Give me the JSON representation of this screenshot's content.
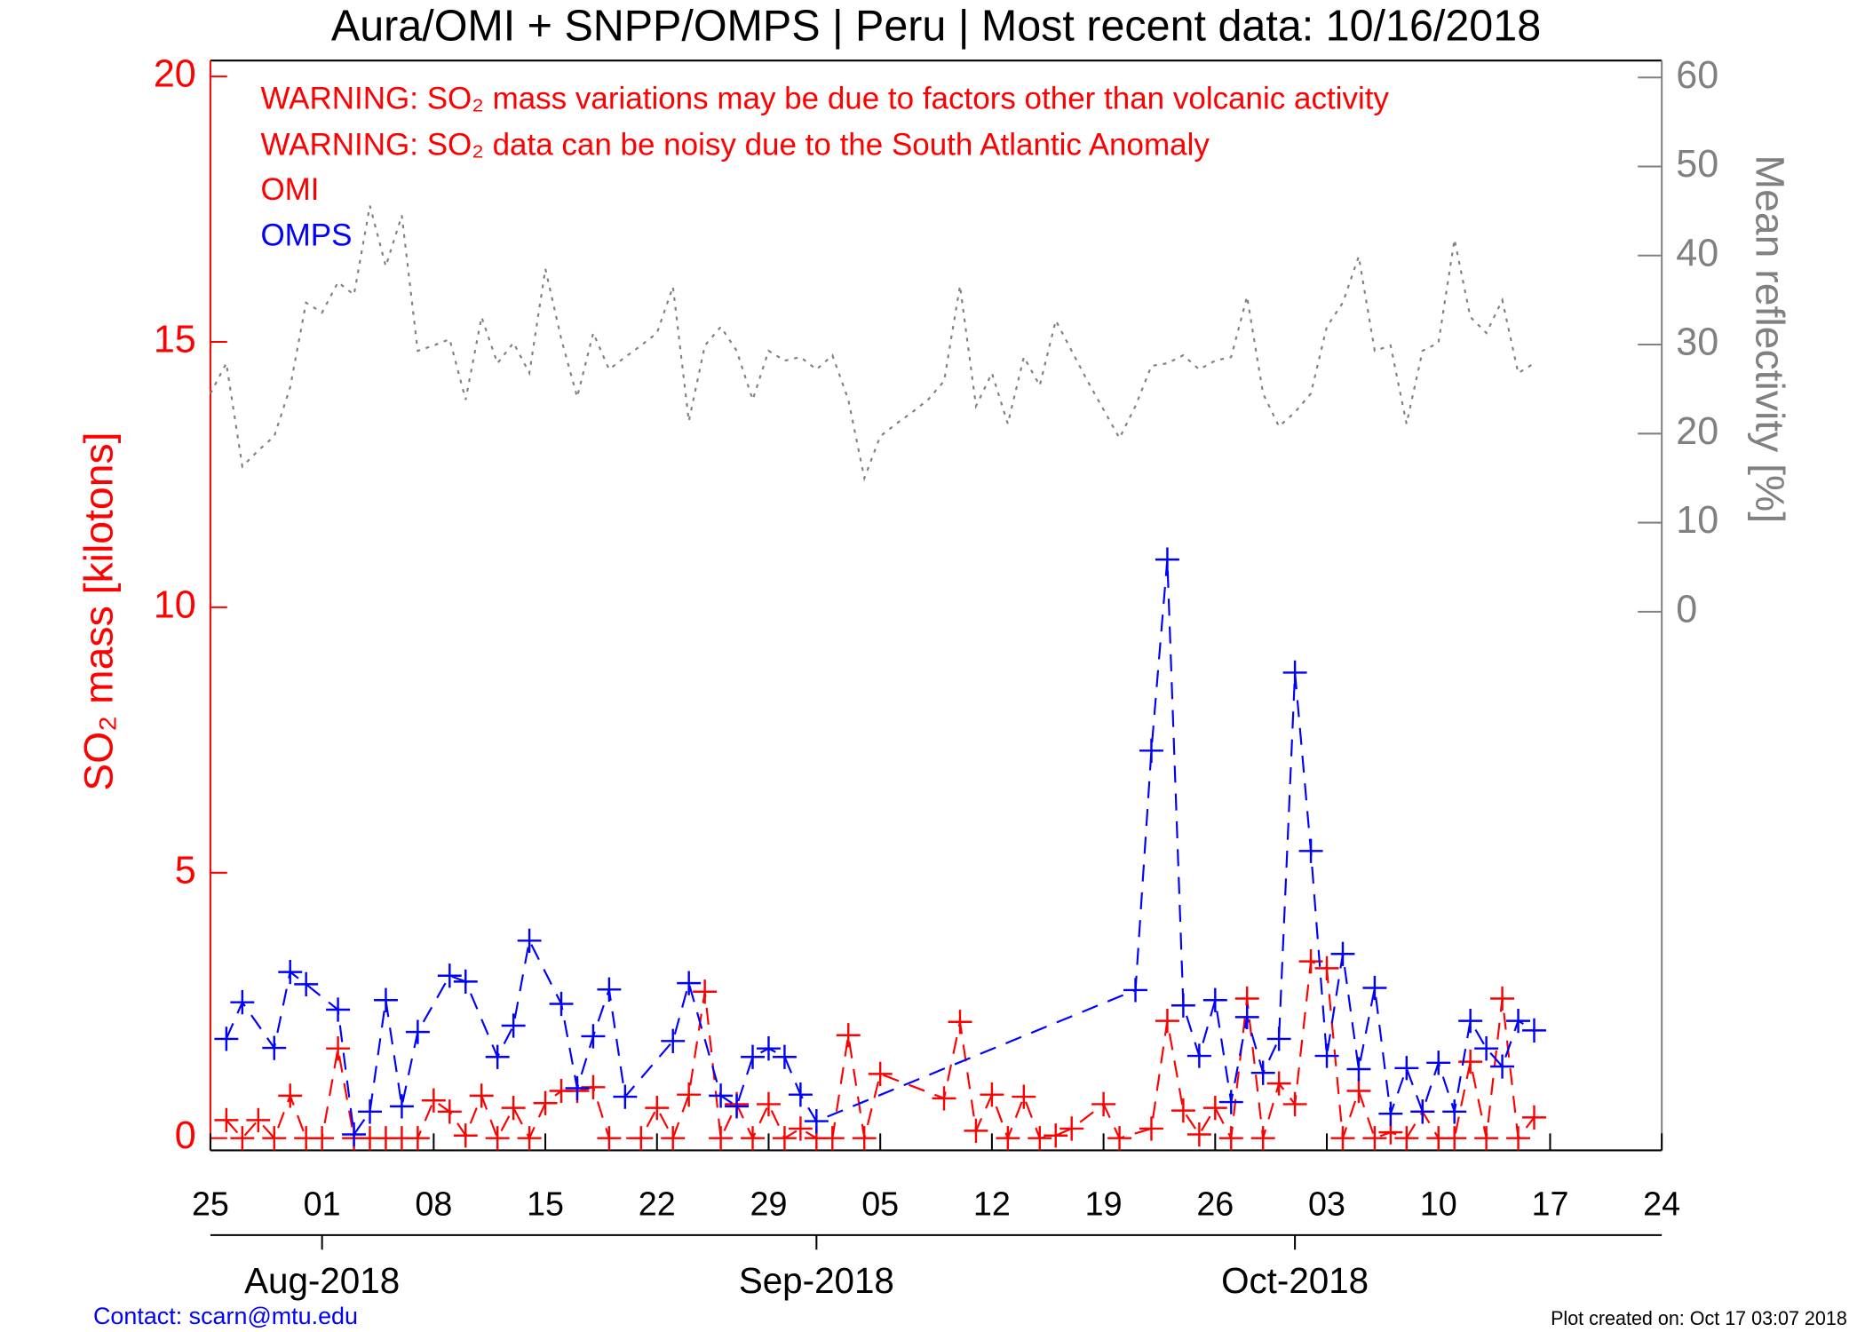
{
  "chart_data": {
    "type": "line",
    "title": "Aura/OMI + SNPP/OMPS | Peru | Most recent data: 10/16/2018",
    "annotations": [
      "WARNING: SO₂ mass variations may be due to factors other than volcanic activity",
      "WARNING: SO₂ data can be noisy due to the South Atlantic Anomaly"
    ],
    "contact": "Contact: scarn@mtu.edu",
    "created": "Plot created on: Oct 17 03:07 2018",
    "ylabel": "SO₂ mass [kilotons]",
    "y2label": "Mean reflectivity [%]",
    "ylim": [
      -0.23,
      20.3
    ],
    "yticks": [
      0,
      5,
      10,
      15,
      20
    ],
    "y2lim": [
      -60.5,
      61.9
    ],
    "y2ticks": [
      0,
      10,
      20,
      30,
      40,
      50,
      60
    ],
    "xlim": [
      "2018-07-25",
      "2018-10-24"
    ],
    "xticks": [
      {
        "value": "2018-07-25",
        "label": "25"
      },
      {
        "value": "2018-08-01",
        "label": "01"
      },
      {
        "value": "2018-08-08",
        "label": "08"
      },
      {
        "value": "2018-08-15",
        "label": "15"
      },
      {
        "value": "2018-08-22",
        "label": "22"
      },
      {
        "value": "2018-08-29",
        "label": "29"
      },
      {
        "value": "2018-09-05",
        "label": "05"
      },
      {
        "value": "2018-09-12",
        "label": "12"
      },
      {
        "value": "2018-09-19",
        "label": "19"
      },
      {
        "value": "2018-09-26",
        "label": "26"
      },
      {
        "value": "2018-10-03",
        "label": "03"
      },
      {
        "value": "2018-10-10",
        "label": "10"
      },
      {
        "value": "2018-10-17",
        "label": "17"
      },
      {
        "value": "2018-10-24",
        "label": "24"
      }
    ],
    "month_ticks": [
      {
        "value": "2018-08-01",
        "label": "Aug-2018"
      },
      {
        "value": "2018-09-01",
        "label": "Sep-2018"
      },
      {
        "value": "2018-10-01",
        "label": "Oct-2018"
      }
    ],
    "legend": "upper left",
    "series": [
      {
        "name": "OMI",
        "color": "#ff0000",
        "marker": "plus",
        "line": "dashed",
        "x": [
          "2018-07-26",
          "2018-07-27",
          "2018-07-28",
          "2018-07-29",
          "2018-07-30",
          "2018-07-31",
          "2018-08-01",
          "2018-08-02",
          "2018-08-03",
          "2018-08-04",
          "2018-08-05",
          "2018-08-06",
          "2018-08-07",
          "2018-08-08",
          "2018-08-09",
          "2018-08-10",
          "2018-08-11",
          "2018-08-12",
          "2018-08-13",
          "2018-08-14",
          "2018-08-15",
          "2018-08-16",
          "2018-08-17",
          "2018-08-18",
          "2018-08-19",
          "2018-08-21",
          "2018-08-22",
          "2018-08-23",
          "2018-08-24",
          "2018-08-25",
          "2018-08-26",
          "2018-08-27",
          "2018-08-28",
          "2018-08-29",
          "2018-08-30",
          "2018-08-31",
          "2018-09-01",
          "2018-09-02",
          "2018-09-03",
          "2018-09-04",
          "2018-09-05",
          "2018-09-09",
          "2018-09-10",
          "2018-09-11",
          "2018-09-12",
          "2018-09-13",
          "2018-09-14",
          "2018-09-15",
          "2018-09-16",
          "2018-09-17",
          "2018-09-19",
          "2018-09-20",
          "2018-09-22",
          "2018-09-23",
          "2018-09-24",
          "2018-09-25",
          "2018-09-26",
          "2018-09-27",
          "2018-09-28",
          "2018-09-29",
          "2018-09-30",
          "2018-10-01",
          "2018-10-02",
          "2018-10-03",
          "2018-10-04",
          "2018-10-05",
          "2018-10-06",
          "2018-10-07",
          "2018-10-08",
          "2018-10-09",
          "2018-10-10",
          "2018-10-11",
          "2018-10-12",
          "2018-10-13",
          "2018-10-14",
          "2018-10-15",
          "2018-10-16"
        ],
        "values": [
          0.34,
          0,
          0.34,
          0,
          0.8,
          0,
          0,
          1.69,
          0,
          0,
          0,
          0,
          0,
          0.71,
          0.5,
          0.05,
          0.8,
          0,
          0.57,
          0,
          0.66,
          0.89,
          0.89,
          0.96,
          0,
          0,
          0.57,
          0,
          0.82,
          2.76,
          0,
          0.64,
          0,
          0.64,
          0,
          0.18,
          0,
          0,
          1.94,
          0,
          1.21,
          0.75,
          2.19,
          0.14,
          0.82,
          0,
          0.78,
          0,
          0.05,
          0.18,
          0.64,
          0,
          0.18,
          2.21,
          0.52,
          0.07,
          0.57,
          0,
          2.63,
          0,
          1.03,
          0.64,
          3.33,
          3.2,
          0,
          0.89,
          0,
          0.11,
          0,
          0.5,
          0,
          0,
          1.44,
          0,
          2.63,
          0,
          0.39
        ]
      },
      {
        "name": "OMPS",
        "color": "#0000ff",
        "marker": "plus",
        "line": "dashed",
        "x": [
          "2018-07-26",
          "2018-07-27",
          "2018-07-29",
          "2018-07-30",
          "2018-07-31",
          "2018-08-02",
          "2018-08-03",
          "2018-08-04",
          "2018-08-05",
          "2018-08-06",
          "2018-08-07",
          "2018-08-09",
          "2018-08-10",
          "2018-08-12",
          "2018-08-13",
          "2018-08-14",
          "2018-08-16",
          "2018-08-17",
          "2018-08-18",
          "2018-08-19",
          "2018-08-20",
          "2018-08-23",
          "2018-08-24",
          "2018-08-26",
          "2018-08-27",
          "2018-08-28",
          "2018-08-29",
          "2018-08-30",
          "2018-08-31",
          "2018-09-01",
          "2018-09-21",
          "2018-09-22",
          "2018-09-23",
          "2018-09-24",
          "2018-09-25",
          "2018-09-26",
          "2018-09-27",
          "2018-09-28",
          "2018-09-29",
          "2018-09-30",
          "2018-10-01",
          "2018-10-02",
          "2018-10-03",
          "2018-10-04",
          "2018-10-05",
          "2018-10-06",
          "2018-10-07",
          "2018-10-08",
          "2018-10-09",
          "2018-10-10",
          "2018-10-11",
          "2018-10-12",
          "2018-10-13",
          "2018-10-14",
          "2018-10-15",
          "2018-10-16"
        ],
        "values": [
          1.87,
          2.56,
          1.7,
          3.13,
          2.9,
          2.42,
          0.07,
          0.5,
          2.6,
          0.6,
          2.0,
          3.06,
          2.95,
          1.53,
          2.12,
          3.72,
          2.53,
          0.94,
          1.92,
          2.8,
          0.78,
          1.83,
          2.92,
          0.8,
          0.6,
          1.53,
          1.69,
          1.53,
          0.82,
          0.32,
          2.79,
          7.3,
          10.9,
          2.5,
          1.55,
          2.6,
          0.68,
          2.28,
          1.23,
          1.87,
          8.77,
          5.41,
          1.55,
          3.47,
          1.3,
          2.83,
          0.46,
          1.32,
          0.5,
          1.42,
          0.5,
          2.21,
          1.69,
          1.35,
          2.21,
          2.03
        ]
      },
      {
        "color": "#808080",
        "marker": "none",
        "line": "dotted",
        "axis": "y2",
        "x": [
          "2018-07-25",
          "2018-07-26",
          "2018-07-27",
          "2018-07-28",
          "2018-07-29",
          "2018-07-30",
          "2018-07-31",
          "2018-08-01",
          "2018-08-02",
          "2018-08-03",
          "2018-08-04",
          "2018-08-05",
          "2018-08-06",
          "2018-08-07",
          "2018-08-08",
          "2018-08-09",
          "2018-08-10",
          "2018-08-11",
          "2018-08-12",
          "2018-08-13",
          "2018-08-14",
          "2018-08-15",
          "2018-08-16",
          "2018-08-17",
          "2018-08-18",
          "2018-08-19",
          "2018-08-20",
          "2018-08-21",
          "2018-08-22",
          "2018-08-23",
          "2018-08-24",
          "2018-08-25",
          "2018-08-26",
          "2018-08-27",
          "2018-08-28",
          "2018-08-29",
          "2018-08-30",
          "2018-08-31",
          "2018-09-01",
          "2018-09-02",
          "2018-09-03",
          "2018-09-04",
          "2018-09-05",
          "2018-09-06",
          "2018-09-07",
          "2018-09-08",
          "2018-09-09",
          "2018-09-10",
          "2018-09-11",
          "2018-09-12",
          "2018-09-13",
          "2018-09-14",
          "2018-09-15",
          "2018-09-16",
          "2018-09-17",
          "2018-09-18",
          "2018-09-20",
          "2018-09-21",
          "2018-09-22",
          "2018-09-23",
          "2018-09-24",
          "2018-09-25",
          "2018-09-26",
          "2018-09-27",
          "2018-09-28",
          "2018-09-29",
          "2018-09-30",
          "2018-10-01",
          "2018-10-02",
          "2018-10-03",
          "2018-10-04",
          "2018-10-05",
          "2018-10-06",
          "2018-10-07",
          "2018-10-08",
          "2018-10-09",
          "2018-10-10",
          "2018-10-11",
          "2018-10-12",
          "2018-10-13",
          "2018-10-14",
          "2018-10-15",
          "2018-10-16"
        ],
        "values": [
          24.5,
          27.9,
          16.3,
          18.1,
          19.7,
          25.2,
          34.7,
          33.6,
          37,
          35.6,
          45.6,
          38.8,
          44.5,
          29.3,
          29.9,
          30.6,
          23.8,
          33.1,
          27.9,
          30.2,
          26.8,
          38.5,
          30.6,
          24.1,
          31.3,
          27.2,
          28.6,
          29.9,
          31.3,
          36.5,
          21.4,
          29.9,
          32,
          29.3,
          23.8,
          29.3,
          28.2,
          28.6,
          27.2,
          28.8,
          23.8,
          15,
          19.7,
          21.1,
          22.4,
          23.8,
          25.9,
          36.6,
          23.1,
          26.8,
          21.1,
          28.6,
          25.4,
          32.7,
          29.3,
          25.9,
          19.5,
          23.1,
          27.6,
          27.9,
          28.8,
          27.2,
          28.2,
          28.6,
          35.4,
          24.5,
          20.8,
          22.4,
          24.5,
          32,
          34.7,
          39.9,
          29.3,
          29.9,
          21.1,
          29.3,
          30.2,
          41.8,
          33.1,
          31.3,
          35,
          26.8,
          27.9
        ]
      }
    ]
  }
}
